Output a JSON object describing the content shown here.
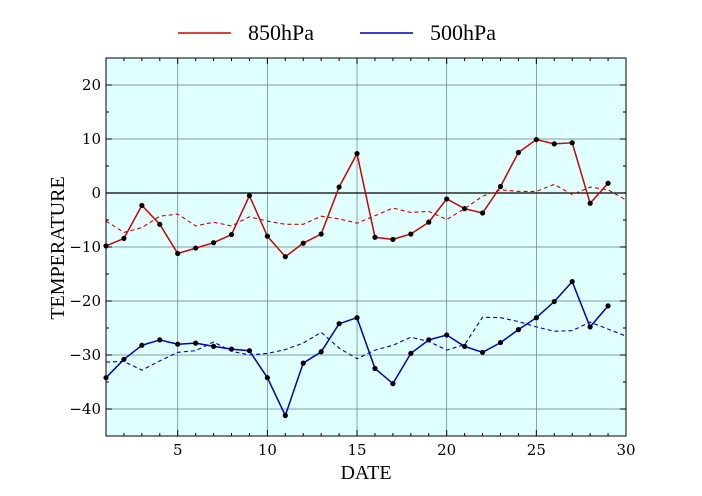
{
  "chart_data": {
    "type": "line",
    "title": "",
    "xlabel": "DATE",
    "ylabel": "TEMPERATURE",
    "xlim": [
      1,
      30
    ],
    "ylim": [
      -45,
      25
    ],
    "xticks": [
      5,
      10,
      15,
      20,
      25,
      30
    ],
    "yticks": [
      -40,
      -30,
      -20,
      -10,
      0,
      10,
      20
    ],
    "xtick_labels": [
      "5",
      "10",
      "15",
      "20",
      "25",
      "30"
    ],
    "ytick_labels": [
      "−40",
      "−30",
      "−20",
      "−10",
      "0",
      "10",
      "20"
    ],
    "grid": true,
    "background": "#e0ffff",
    "zero_line": true,
    "legend_position": "top-center",
    "series": [
      {
        "name": "850hPa",
        "color": "#d00000",
        "style": "solid-markers",
        "x": [
          1,
          2,
          3,
          4,
          5,
          6,
          7,
          8,
          9,
          10,
          11,
          12,
          13,
          14,
          15,
          16,
          17,
          18,
          19,
          20,
          21,
          22,
          23,
          24,
          25,
          26,
          27,
          28,
          29
        ],
        "values": [
          -9.8,
          -8.4,
          -2.3,
          -5.8,
          -11.2,
          -10.2,
          -9.2,
          -7.7,
          -0.5,
          -8.0,
          -11.8,
          -9.3,
          -7.6,
          1.1,
          7.3,
          -8.2,
          -8.6,
          -7.6,
          -5.4,
          -1.1,
          -2.9,
          -3.7,
          1.2,
          7.5,
          9.9,
          9.1,
          9.3,
          -1.9,
          1.8
        ]
      },
      {
        "name": "500hPa",
        "color": "#0000c0",
        "style": "solid-markers",
        "x": [
          1,
          2,
          3,
          4,
          5,
          6,
          7,
          8,
          9,
          10,
          11,
          12,
          13,
          14,
          15,
          16,
          17,
          18,
          19,
          20,
          21,
          22,
          23,
          24,
          25,
          26,
          27,
          28,
          29
        ],
        "values": [
          -34.2,
          -30.8,
          -28.2,
          -27.2,
          -28.0,
          -27.8,
          -28.4,
          -28.9,
          -29.2,
          -34.2,
          -41.2,
          -31.5,
          -29.4,
          -24.2,
          -23.1,
          -32.5,
          -35.3,
          -29.7,
          -27.2,
          -26.3,
          -28.4,
          -29.5,
          -27.7,
          -25.3,
          -23.1,
          -20.1,
          -16.4,
          -24.8,
          -20.9
        ]
      },
      {
        "name": "",
        "color": "#d00000",
        "style": "dashed",
        "x": [
          1,
          2,
          3,
          4,
          5,
          6,
          7,
          8,
          9,
          10,
          11,
          12,
          13,
          14,
          15,
          16,
          17,
          18,
          19,
          20,
          21,
          22,
          23,
          24,
          25,
          26,
          27,
          28,
          29,
          30
        ],
        "values": [
          -5.2,
          -7.3,
          -6.4,
          -4.3,
          -3.9,
          -6.1,
          -5.4,
          -6.1,
          -4.4,
          -5.2,
          -5.8,
          -5.8,
          -4.3,
          -4.8,
          -5.6,
          -4.2,
          -2.8,
          -3.6,
          -3.4,
          -4.9,
          -2.9,
          -0.6,
          0.6,
          0.3,
          0.3,
          1.6,
          -0.3,
          1.1,
          0.6,
          -1.3
        ]
      },
      {
        "name": "",
        "color": "#0000c0",
        "style": "dashed",
        "x": [
          1,
          2,
          3,
          4,
          5,
          6,
          7,
          8,
          9,
          10,
          11,
          12,
          13,
          14,
          15,
          16,
          17,
          18,
          19,
          20,
          21,
          22,
          23,
          24,
          25,
          26,
          27,
          28,
          29,
          30
        ],
        "values": [
          -31.3,
          -31.2,
          -32.8,
          -31.1,
          -29.5,
          -29.2,
          -27.6,
          -29.3,
          -30.0,
          -29.7,
          -29.0,
          -27.8,
          -25.8,
          -28.7,
          -30.7,
          -29.1,
          -28.2,
          -26.7,
          -27.5,
          -29.1,
          -28.1,
          -23.0,
          -23.1,
          -23.8,
          -24.8,
          -25.6,
          -25.5,
          -23.9,
          -25.2,
          -26.5
        ]
      }
    ]
  }
}
